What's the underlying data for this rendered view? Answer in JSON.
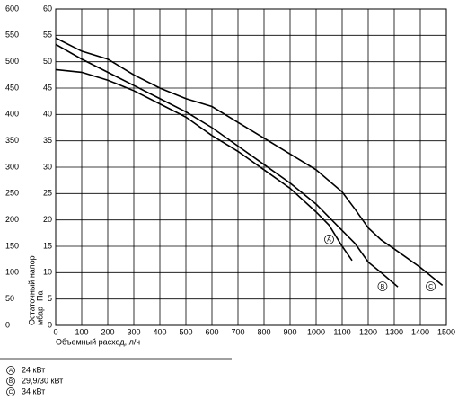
{
  "chart_data": {
    "type": "line",
    "x_label": "Объемный расход, л/ч",
    "y_label": [
      "Остаточный напор",
      "мбар"
    ],
    "y2_label": "Па",
    "xlim": [
      0,
      1500
    ],
    "xticks": [
      0,
      100,
      200,
      300,
      400,
      500,
      600,
      700,
      800,
      900,
      1000,
      1100,
      1200,
      1300,
      1400,
      1500
    ],
    "ylim": [
      0,
      60
    ],
    "yticks": [
      0,
      5,
      10,
      15,
      20,
      25,
      30,
      35,
      40,
      45,
      50,
      55,
      60
    ],
    "y2lim": [
      0,
      600
    ],
    "y2ticks": [
      0,
      50,
      100,
      150,
      200,
      250,
      300,
      350,
      400,
      450,
      500,
      550,
      600
    ],
    "grid": true,
    "series": [
      {
        "name": "24 кВт",
        "label": "A",
        "color": "#000000",
        "x": [
          0,
          100,
          200,
          300,
          400,
          500,
          600,
          700,
          800,
          900,
          1000,
          1050,
          1100,
          1138
        ],
        "values": [
          48.5,
          48,
          46.5,
          44.5,
          42,
          39.5,
          36,
          33,
          29.5,
          26,
          21.5,
          19,
          15,
          12.3
        ]
      },
      {
        "name": "29,9/30 кВт",
        "label": "B",
        "color": "#000000",
        "x": [
          0,
          100,
          200,
          300,
          400,
          500,
          600,
          700,
          800,
          900,
          1000,
          1100,
          1150,
          1200,
          1250,
          1314
        ],
        "values": [
          53.3,
          50.5,
          48,
          45.5,
          43,
          40.5,
          37.5,
          34,
          30.5,
          27,
          23,
          18,
          15.5,
          12,
          10,
          7.3
        ]
      },
      {
        "name": "34 кВт",
        "label": "C",
        "color": "#000000",
        "x": [
          0,
          100,
          200,
          300,
          400,
          500,
          600,
          700,
          800,
          900,
          1000,
          1100,
          1150,
          1200,
          1250,
          1300,
          1400,
          1450,
          1485
        ],
        "values": [
          54.5,
          52,
          50.5,
          47.5,
          45,
          43,
          41.5,
          38.5,
          35.5,
          32.5,
          29.5,
          25.3,
          22,
          18.5,
          16.2,
          14.5,
          11,
          9,
          7.6
        ]
      }
    ]
  }
}
